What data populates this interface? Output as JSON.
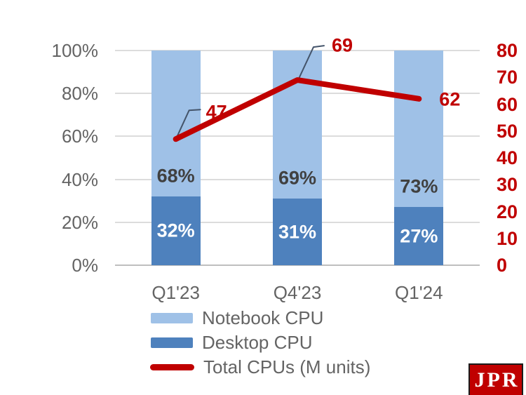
{
  "chart_data": {
    "type": "bar",
    "subtype": "stacked-percent-columns-with-secondary-line",
    "title": "",
    "categories": [
      "Q1'23",
      "Q4'23",
      "Q1'24"
    ],
    "series": [
      {
        "name": "Notebook CPU",
        "chart": "bar",
        "stack_position": "top",
        "axis": "left",
        "values": [
          68,
          69,
          73
        ],
        "labels": [
          "68%",
          "69%",
          "73%"
        ],
        "color": "#9FC1E7",
        "label_color": "#404040"
      },
      {
        "name": "Desktop CPU",
        "chart": "bar",
        "stack_position": "bottom",
        "axis": "left",
        "values": [
          32,
          31,
          27
        ],
        "labels": [
          "32%",
          "31%",
          "27%"
        ],
        "color": "#4E81BD",
        "label_color": "#FFFFFF"
      },
      {
        "name": "Total CPUs (M units)",
        "chart": "line",
        "axis": "right",
        "values": [
          47,
          69,
          62
        ],
        "labels": [
          "47",
          "69",
          "62"
        ],
        "color": "#C00000",
        "label_color": "#C00000"
      }
    ],
    "left_axis": {
      "range": [
        0,
        100
      ],
      "ticks": [
        "100%",
        "80%",
        "60%",
        "40%",
        "20%",
        "0%"
      ],
      "text_color": "#646464"
    },
    "right_axis": {
      "range": [
        0,
        80
      ],
      "ticks": [
        "80",
        "70",
        "60",
        "50",
        "40",
        "30",
        "20",
        "10",
        "0"
      ],
      "text_color": "#C00000"
    },
    "grid": true,
    "gridline_color": "#DCDCDC",
    "baseline_color": "#BFBFBF",
    "callout_color": "#44546A",
    "category_text_color": "#646464",
    "legend_position": "bottom-left"
  },
  "legend": {
    "items": [
      {
        "label": "Notebook CPU",
        "swatch": "rect",
        "color": "#9FC1E7"
      },
      {
        "label": "Desktop CPU",
        "swatch": "rect",
        "color": "#4E81BD"
      },
      {
        "label": "Total CPUs (M units)",
        "swatch": "line",
        "color": "#C00000"
      }
    ],
    "text_color": "#646464"
  },
  "logo": {
    "text": "JPR",
    "bg_color": "#C00000",
    "text_color": "#FFFFFF"
  }
}
